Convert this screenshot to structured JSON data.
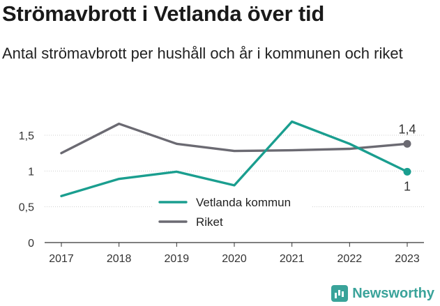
{
  "title": "Strömavbrott i Vetlanda över tid",
  "subtitle": "Antal strömavbrott per hushåll och år i kommunen och riket",
  "brand": {
    "name": "Newsworthy",
    "icon": "bar-chart-icon",
    "color": "#3aa39a"
  },
  "chart_data": {
    "type": "line",
    "x": [
      "2017",
      "2018",
      "2019",
      "2020",
      "2021",
      "2022",
      "2023"
    ],
    "ylim": [
      0,
      1.5
    ],
    "yticks": [
      0,
      0.5,
      1,
      1.5
    ],
    "ytick_labels": [
      "0",
      "0,5",
      "1",
      "1,5"
    ],
    "grid": true,
    "legend_position": "center",
    "series": [
      {
        "name": "Vetlanda kommun",
        "color": "#1a9e8f",
        "values": [
          0.65,
          0.89,
          0.99,
          0.8,
          1.69,
          1.38,
          0.99
        ],
        "end_label": "1"
      },
      {
        "name": "Riket",
        "color": "#6b6a72",
        "values": [
          1.25,
          1.66,
          1.38,
          1.28,
          1.29,
          1.31,
          1.38
        ],
        "end_label": "1,4"
      }
    ]
  }
}
